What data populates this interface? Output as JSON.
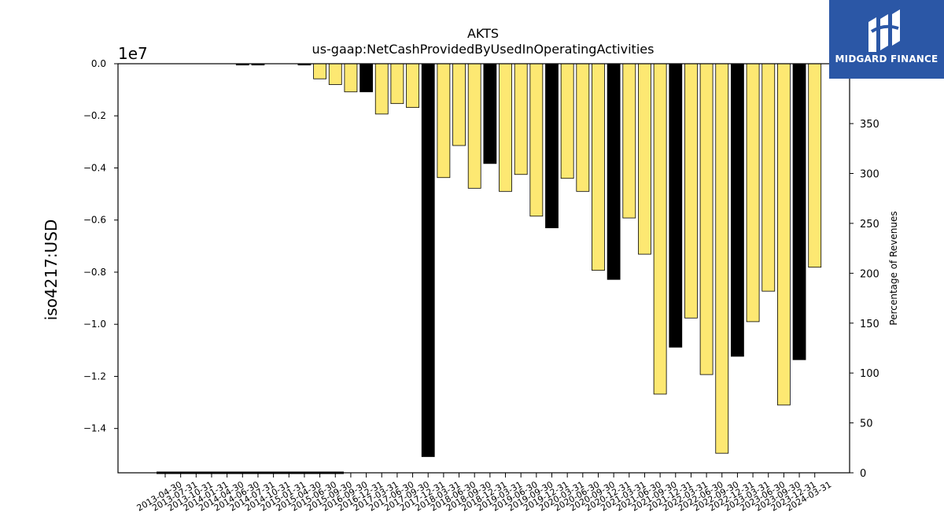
{
  "chart_data": {
    "type": "bar",
    "title": "AKTS",
    "subtitle": "us-gaap:NetCashProvidedByUsedInOperatingActivities",
    "ylabel": "iso4217:USD",
    "y_offset_label": "1e7",
    "y2label": "Percentage of Revenues",
    "ylim": [
      -1.57,
      0.0
    ],
    "y2lim": [
      0,
      410
    ],
    "yticks": [
      "0.0",
      "-0.2",
      "-0.4",
      "-0.6",
      "-0.8",
      "-1.0",
      "-1.2",
      "-1.4"
    ],
    "y2ticks": [
      "0",
      "50",
      "100",
      "150",
      "200",
      "250",
      "300",
      "350"
    ],
    "grid": false,
    "categories": [
      "2013-04-30",
      "2013-07-31",
      "2013-10-31",
      "2014-01-31",
      "2014-04-30",
      "2014-06-30",
      "2014-07-31",
      "2014-10-31",
      "2015-01-31",
      "2015-04-30",
      "2015-06-30",
      "2015-09-30",
      "2016-09-30",
      "2016-12-31",
      "2017-03-31",
      "2017-06-30",
      "2017-09-30",
      "2017-12-31",
      "2018-03-31",
      "2018-06-30",
      "2018-09-30",
      "2018-12-31",
      "2019-03-31",
      "2019-06-30",
      "2019-09-30",
      "2019-12-31",
      "2020-03-31",
      "2020-06-30",
      "2020-09-30",
      "2020-12-31",
      "2021-03-31",
      "2021-06-30",
      "2021-09-30",
      "2021-12-31",
      "2022-03-31",
      "2022-06-30",
      "2022-09-30",
      "2022-12-31",
      "2023-03-31",
      "2023-06-30",
      "2023-09-30",
      "2023-12-31",
      "2024-03-31"
    ],
    "series": [
      {
        "values": [
          null,
          null,
          null,
          null,
          null,
          -0.005,
          -0.005,
          null,
          null,
          -0.005,
          -0.058,
          -0.08,
          -0.108,
          -0.108,
          -0.193,
          -0.153,
          -0.168,
          -1.508,
          -0.437,
          -0.314,
          -0.478,
          -0.383,
          -0.49,
          -0.425,
          -0.585,
          -0.63,
          -0.44,
          -0.49,
          -0.793,
          -0.828,
          -0.592,
          -0.731,
          -1.268,
          -1.088,
          -0.976,
          -1.193,
          -1.495,
          -1.123,
          -0.99,
          -0.873,
          -1.31,
          -1.136,
          -0.781
        ],
        "colors": [
          "#fde872",
          "#fde872",
          "#fde872",
          "#fde872",
          "#fde872",
          "#000000",
          "#000000",
          "#fde872",
          "#fde872",
          "#000000",
          "#fde872",
          "#fde872",
          "#fde872",
          "#000000",
          "#fde872",
          "#fde872",
          "#fde872",
          "#000000",
          "#fde872",
          "#fde872",
          "#fde872",
          "#000000",
          "#fde872",
          "#fde872",
          "#fde872",
          "#000000",
          "#fde872",
          "#fde872",
          "#fde872",
          "#000000",
          "#fde872",
          "#fde872",
          "#fde872",
          "#000000",
          "#fde872",
          "#fde872",
          "#fde872",
          "#000000",
          "#fde872",
          "#fde872",
          "#fde872",
          "#000000",
          "#fde872"
        ]
      }
    ]
  },
  "logo": {
    "text": "MIDGARD FINANCE",
    "bg_color": "#2b57a6",
    "icon": "midgard-m-logo-icon"
  }
}
